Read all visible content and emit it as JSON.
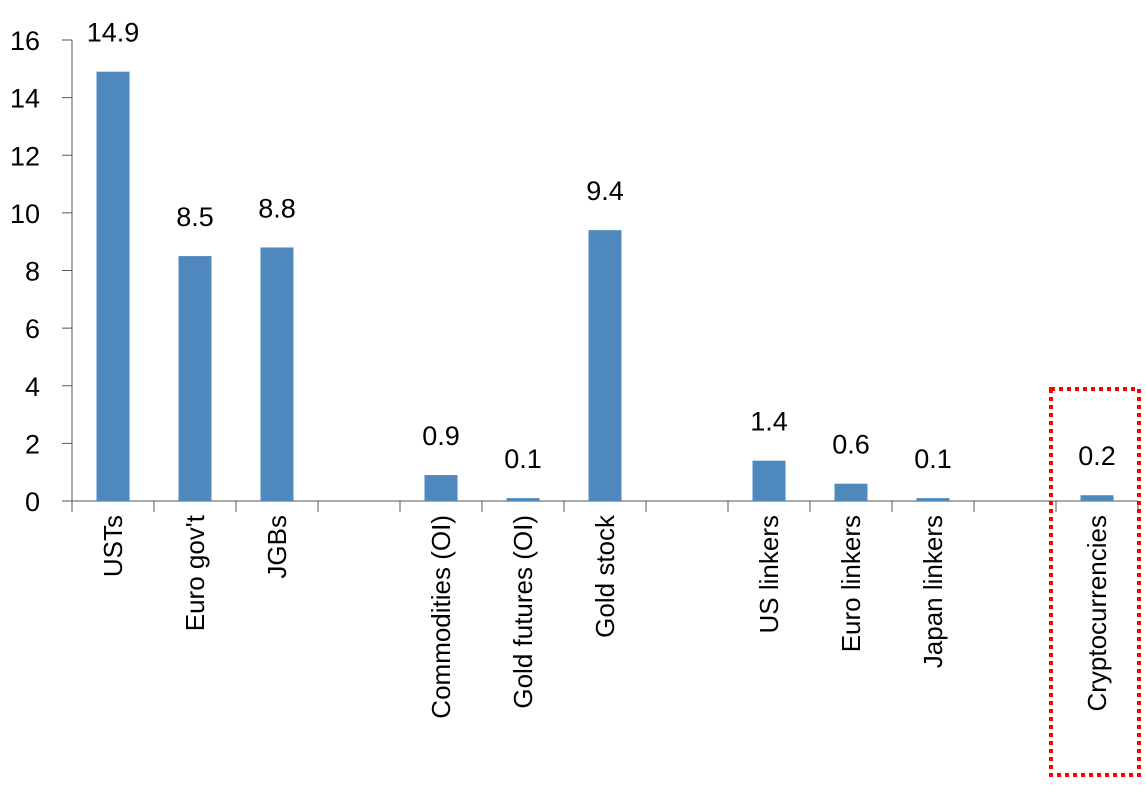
{
  "chart_data": {
    "type": "bar",
    "title": "",
    "xlabel": "",
    "ylabel": "",
    "ylim": [
      0,
      16
    ],
    "yticks": [
      "0",
      "2",
      "4",
      "6",
      "8",
      "10",
      "12",
      "14",
      "16"
    ],
    "grid": false,
    "categories": [
      "USTs",
      "Euro gov't",
      "JGBs",
      "",
      "Commodities (OI)",
      "Gold futures (OI)",
      "Gold stock",
      "",
      "US linkers",
      "Euro linkers",
      "Japan linkers",
      "",
      "Cryptocurrencies"
    ],
    "values": [
      14.9,
      8.5,
      8.8,
      null,
      0.9,
      0.1,
      9.4,
      null,
      1.4,
      0.6,
      0.1,
      null,
      0.2
    ],
    "data_labels": [
      "14.9",
      "8.5",
      "8.8",
      "",
      "0.9",
      "0.1",
      "9.4",
      "",
      "1.4",
      "0.6",
      "0.1",
      "",
      "0.2"
    ],
    "highlighted_category": "Cryptocurrencies",
    "colors": {
      "bar": "#4F88BD",
      "highlight_box": "#FF0000",
      "axis": "#555555"
    }
  }
}
